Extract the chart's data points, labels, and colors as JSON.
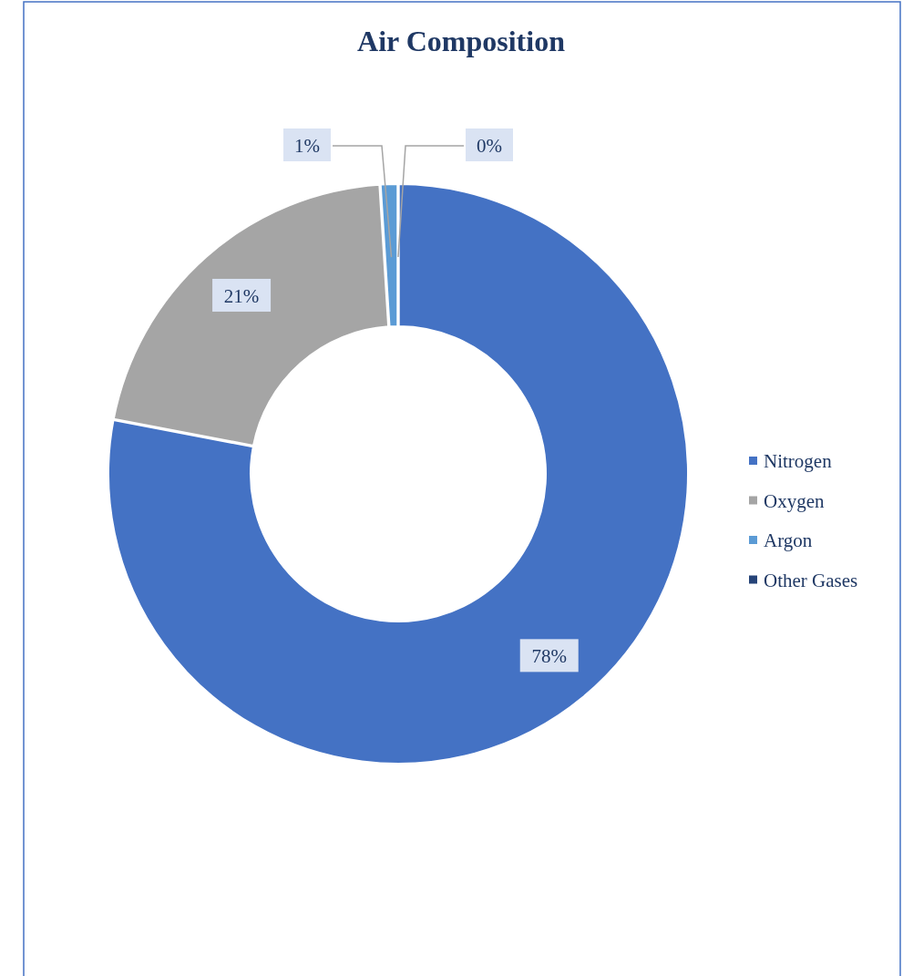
{
  "chart_data": {
    "type": "donut",
    "title": "Air Composition",
    "categories": [
      "Nitrogen",
      "Oxygen",
      "Argon",
      "Other Gases"
    ],
    "values": [
      78,
      21,
      1,
      0
    ],
    "colors": [
      "#4472c4",
      "#a5a5a5",
      "#5b9bd5",
      "#264478"
    ],
    "value_labels": [
      "78%",
      "21%",
      "1%",
      "0%"
    ],
    "legend": "right"
  }
}
